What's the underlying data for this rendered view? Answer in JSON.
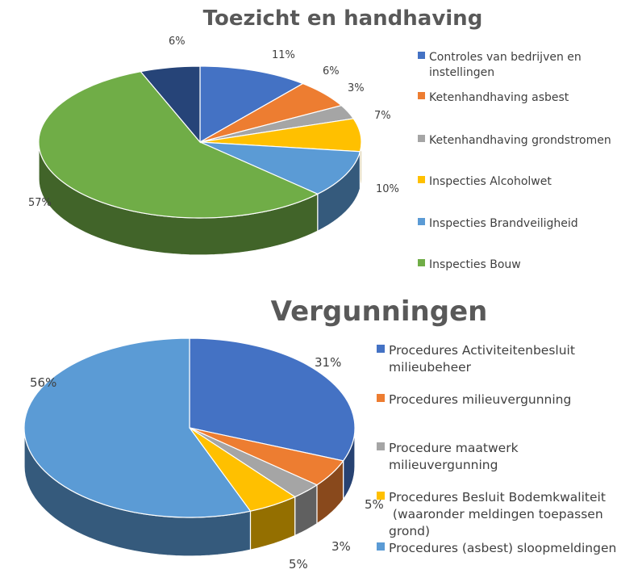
{
  "chart_data": [
    {
      "type": "pie",
      "title": "Toezicht en handhaving",
      "legend_position": "right",
      "slices": [
        {
          "name": "Controles van bedrijven en instellingen",
          "legend_lines": [
            "Controles van bedrijven en",
            "instellingen"
          ],
          "value": 11,
          "label": "11%",
          "color": "#4472c4"
        },
        {
          "name": "Ketenhandhaving asbest",
          "legend_lines": [
            "Ketenhandhaving asbest"
          ],
          "value": 6,
          "label": "6%",
          "color": "#ed7d31"
        },
        {
          "name": "Ketenhandhaving grondstromen",
          "legend_lines": [
            "Ketenhandhaving grondstromen"
          ],
          "value": 3,
          "label": "3%",
          "color": "#a5a5a5"
        },
        {
          "name": "Inspecties  Alcoholwet",
          "legend_lines": [
            "Inspecties  Alcoholwet"
          ],
          "value": 7,
          "label": "7%",
          "color": "#ffc000"
        },
        {
          "name": "Inspecties Brandveiligheid",
          "legend_lines": [
            "Inspecties Brandveiligheid"
          ],
          "value": 10,
          "label": "10%",
          "color": "#5b9bd5"
        },
        {
          "name": "Inspecties Bouw",
          "legend_lines": [
            "Inspecties Bouw"
          ],
          "value": 57,
          "label": "57%",
          "color": "#70ad47"
        },
        {
          "name": "",
          "legend_lines": [],
          "value": 6,
          "label": "6%",
          "color": "#264478"
        }
      ]
    },
    {
      "type": "pie",
      "title": "Vergunningen",
      "legend_position": "right",
      "slices": [
        {
          "name": "Procedures Activiteitenbesluit milieubeheer",
          "legend_lines": [
            "Procedures Activiteitenbesluit",
            "milieubeheer"
          ],
          "value": 31,
          "label": "31%",
          "color": "#4472c4"
        },
        {
          "name": "Procedures milieuvergunning",
          "legend_lines": [
            "Procedures milieuvergunning"
          ],
          "value": 5,
          "label": "5%",
          "color": "#ed7d31"
        },
        {
          "name": "Procedure maatwerk milieuvergunning",
          "legend_lines": [
            "Procedure maatwerk",
            "milieuvergunning"
          ],
          "value": 3,
          "label": "3%",
          "color": "#a5a5a5"
        },
        {
          "name": "Procedures Besluit Bodemkwaliteit (waaronder meldingen toepassen grond)",
          "legend_lines": [
            "Procedures Besluit Bodemkwaliteit",
            " (waaronder meldingen toepassen",
            "grond)"
          ],
          "value": 5,
          "label": "5%",
          "color": "#ffc000"
        },
        {
          "name": "Procedures (asbest) sloopmeldingen",
          "legend_lines": [
            "Procedures (asbest) sloopmeldingen"
          ],
          "value": 56,
          "label": "56%",
          "color": "#5b9bd5"
        }
      ]
    }
  ]
}
